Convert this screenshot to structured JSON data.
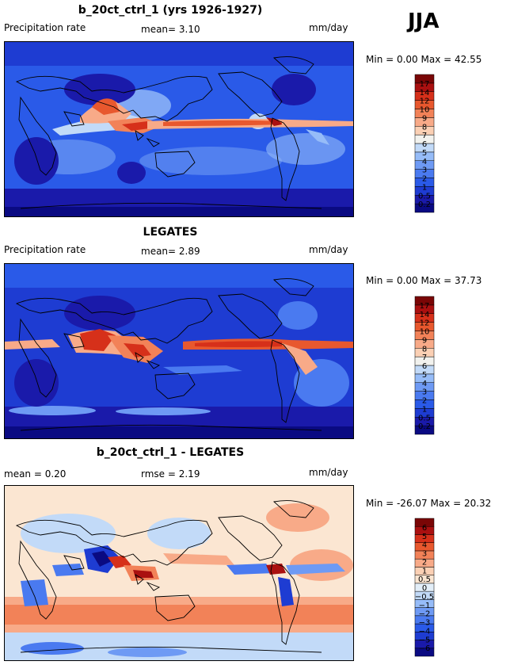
{
  "season": "JJA",
  "colors": {
    "precip": [
      "#0a0a82",
      "#1a1aaa",
      "#1e3cd2",
      "#2a5ae8",
      "#4a7af0",
      "#6e9af4",
      "#96bcf8",
      "#c2daf8",
      "#f2f2ee",
      "#fbd0b4",
      "#f8aa88",
      "#f28258",
      "#e8582e",
      "#d6301a",
      "#aa1010",
      "#7a0606"
    ],
    "diff": [
      "#0a0a82",
      "#1a1aaa",
      "#1e3cd2",
      "#2a5ae8",
      "#4a7af0",
      "#6e9af4",
      "#96bcf8",
      "#c2daf8",
      "#e2eef8",
      "#fbe6d2",
      "#fbd0b4",
      "#f8aa88",
      "#f28258",
      "#e8582e",
      "#d6301a",
      "#aa1010",
      "#7a0606"
    ]
  },
  "panels": [
    {
      "title": "b_20ct_ctrl_1 (yrs 1926-1927)",
      "left_label": "Precipitation rate",
      "mid_label": "mean=   3.10",
      "units": "mm/day",
      "minmax": "Min =    0.00  Max =  42.55"
    },
    {
      "title": "LEGATES",
      "left_label": "Precipitation rate",
      "mid_label": "mean=   2.89",
      "units": "mm/day",
      "minmax": "Min =    0.00  Max =  37.73"
    },
    {
      "title": "b_20ct_ctrl_1 - LEGATES",
      "left_label": "mean =   0.20",
      "mid_label": "rmse =   2.19",
      "units": "mm/day",
      "minmax": "Min = -26.07  Max =  20.32"
    }
  ],
  "chart_data": [
    {
      "type": "heatmap",
      "title": "b_20ct_ctrl_1 (yrs 1926-1927)",
      "variable": "Precipitation rate",
      "units": "mm/day",
      "mean": 3.1,
      "min": 0.0,
      "max": 42.55,
      "colorbar_levels": [
        "0.2",
        "0.5",
        "1",
        "2",
        "3",
        "4",
        "5",
        "6",
        "7",
        "8",
        "9",
        "10",
        "12",
        "14",
        "17"
      ]
    },
    {
      "type": "heatmap",
      "title": "LEGATES",
      "variable": "Precipitation rate",
      "units": "mm/day",
      "mean": 2.89,
      "min": 0.0,
      "max": 37.73,
      "colorbar_levels": [
        "0.2",
        "0.5",
        "1",
        "2",
        "3",
        "4",
        "5",
        "6",
        "7",
        "8",
        "9",
        "10",
        "12",
        "14",
        "17"
      ]
    },
    {
      "type": "heatmap",
      "title": "b_20ct_ctrl_1 - LEGATES",
      "units": "mm/day",
      "mean": 0.2,
      "rmse": 2.19,
      "min": -26.07,
      "max": 20.32,
      "colorbar_levels": [
        "−6",
        "−5",
        "−4",
        "−3",
        "−2",
        "−1",
        "−0.5",
        "0",
        "0.5",
        "1",
        "2",
        "3",
        "4",
        "5",
        "6"
      ]
    }
  ]
}
